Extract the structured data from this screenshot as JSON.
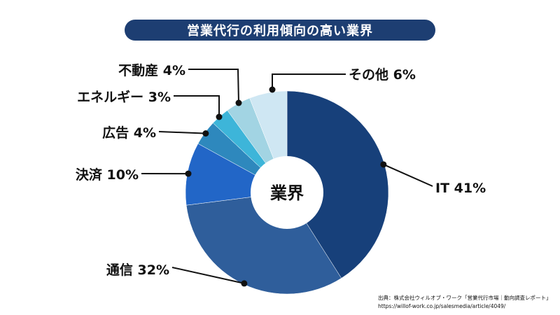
{
  "chart_data": {
    "type": "pie",
    "title": "営業代行の利用傾向の高い業界",
    "center_label": "業界",
    "categories": [
      "IT",
      "通信",
      "決済",
      "広告",
      "エネルギー",
      "不動産",
      "その他"
    ],
    "values": [
      41,
      32,
      10,
      4,
      3,
      4,
      6
    ],
    "labels": [
      "IT 41%",
      "通信 32%",
      "決済 10%",
      "広告 4%",
      "エネルギー 3%",
      "不動産 4%",
      "その他 6%"
    ],
    "colors": [
      "#17407a",
      "#2f5e9b",
      "#2266c7",
      "#2e88bd",
      "#3db5d9",
      "#a2d4e3",
      "#cfe7f3"
    ]
  },
  "source": {
    "line1": "出典：株式会社ウィルオブ・ワーク「営業代行市場｜動向調査レポート」",
    "line2": "https://willof-work.co.jp/salesmedia/article/4049/"
  }
}
